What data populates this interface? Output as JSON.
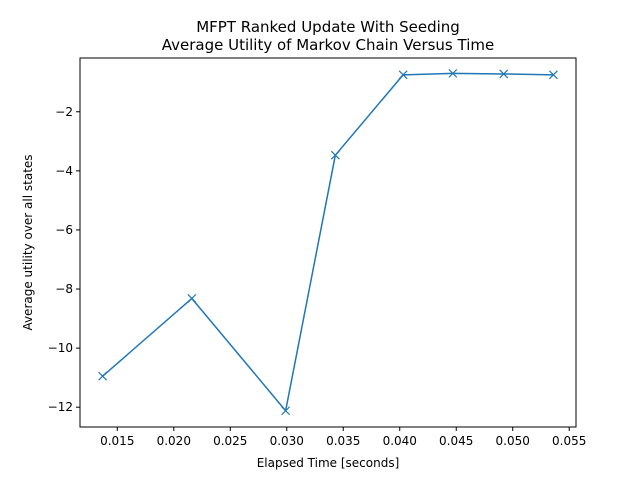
{
  "chart_data": {
    "type": "line",
    "title": "MFPT Ranked Update With Seeding",
    "subtitle": "Average Utility of Markov Chain Versus Time",
    "xlabel": "Elapsed Time [seconds]",
    "ylabel": "Average utility over all states",
    "xlim": [
      0.0117,
      0.0556
    ],
    "ylim": [
      -12.67,
      -0.18
    ],
    "xticks": [
      0.015,
      0.02,
      0.025,
      0.03,
      0.035,
      0.04,
      0.045,
      0.05,
      0.055
    ],
    "xtick_labels": [
      "0.015",
      "0.020",
      "0.025",
      "0.030",
      "0.035",
      "0.040",
      "0.045",
      "0.050",
      "0.055"
    ],
    "yticks": [
      -12,
      -10,
      -8,
      -6,
      -4,
      -2
    ],
    "ytick_labels": [
      "−12",
      "−10",
      "−8",
      "−6",
      "−4",
      "−2"
    ],
    "grid": false,
    "marker": "x",
    "color": "#1f77b4",
    "series": [
      {
        "x": [
          0.0137,
          0.0216,
          0.0299,
          0.0343,
          0.0403,
          0.0447,
          0.0492,
          0.0536
        ],
        "y": [
          -10.95,
          -8.32,
          -12.12,
          -3.47,
          -0.75,
          -0.7,
          -0.72,
          -0.75
        ]
      }
    ]
  }
}
